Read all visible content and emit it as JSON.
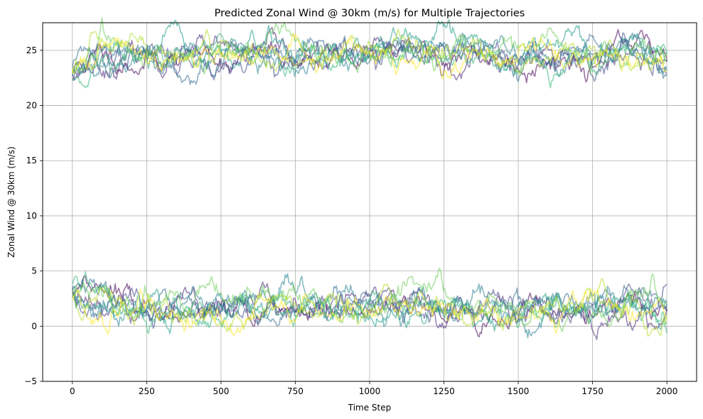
{
  "chart_data": {
    "type": "line",
    "title": "Predicted Zonal Wind @ 30km (m/s) for Multiple Trajectories",
    "xlabel": "Time Step",
    "ylabel": "Zonal Wind @ 30km (m/s)",
    "xlim": [
      -100,
      2100
    ],
    "ylim": [
      -5,
      27.5
    ],
    "xticks": [
      0,
      250,
      500,
      750,
      1000,
      1250,
      1500,
      1750,
      2000
    ],
    "yticks": [
      -5,
      0,
      5,
      10,
      15,
      20,
      25
    ],
    "grid": true,
    "legend": "none",
    "colormap": "viridis",
    "line_opacity": 0.55,
    "x_range": [
      0,
      2000
    ],
    "sample_every": 4,
    "colors": [
      "#440154",
      "#482878",
      "#3e4989",
      "#31688e",
      "#26828e",
      "#1f9e89",
      "#35b779",
      "#6ece58",
      "#b5de2b",
      "#fde725"
    ],
    "series": [
      {
        "regime": "upper",
        "color_index": 0,
        "seed": 11,
        "start": 23.0,
        "mean": 24.5,
        "std": 0.85
      },
      {
        "regime": "upper",
        "color_index": 1,
        "seed": 23,
        "start": 22.8,
        "mean": 24.3,
        "std": 0.85
      },
      {
        "regime": "upper",
        "color_index": 2,
        "seed": 37,
        "start": 22.5,
        "mean": 24.4,
        "std": 0.9
      },
      {
        "regime": "upper",
        "color_index": 3,
        "seed": 41,
        "start": 23.4,
        "mean": 24.7,
        "std": 0.85
      },
      {
        "regime": "upper",
        "color_index": 4,
        "seed": 53,
        "start": 22.7,
        "mean": 24.5,
        "std": 0.85
      },
      {
        "regime": "upper",
        "color_index": 5,
        "seed": 67,
        "start": 23.2,
        "mean": 24.6,
        "std": 0.9
      },
      {
        "regime": "upper",
        "color_index": 6,
        "seed": 71,
        "start": 22.3,
        "mean": 24.4,
        "std": 0.85
      },
      {
        "regime": "upper",
        "color_index": 7,
        "seed": 83,
        "start": 23.0,
        "mean": 24.8,
        "std": 0.9
      },
      {
        "regime": "upper",
        "color_index": 8,
        "seed": 97,
        "start": 22.9,
        "mean": 24.5,
        "std": 0.85
      },
      {
        "regime": "upper",
        "color_index": 9,
        "seed": 101,
        "start": 23.3,
        "mean": 24.6,
        "std": 0.85
      },
      {
        "regime": "lower",
        "color_index": 0,
        "seed": 113,
        "start": 3.5,
        "mean": 1.6,
        "std": 0.85
      },
      {
        "regime": "lower",
        "color_index": 1,
        "seed": 127,
        "start": 3.0,
        "mean": 1.5,
        "std": 0.85
      },
      {
        "regime": "lower",
        "color_index": 2,
        "seed": 131,
        "start": 2.8,
        "mean": 1.4,
        "std": 0.9
      },
      {
        "regime": "lower",
        "color_index": 3,
        "seed": 149,
        "start": 3.6,
        "mean": 1.7,
        "std": 0.85
      },
      {
        "regime": "lower",
        "color_index": 4,
        "seed": 151,
        "start": 3.2,
        "mean": 1.6,
        "std": 0.85
      },
      {
        "regime": "lower",
        "color_index": 5,
        "seed": 163,
        "start": 2.6,
        "mean": 1.5,
        "std": 0.9
      },
      {
        "regime": "lower",
        "color_index": 6,
        "seed": 173,
        "start": 3.8,
        "mean": 1.8,
        "std": 0.85
      },
      {
        "regime": "lower",
        "color_index": 7,
        "seed": 181,
        "start": 3.4,
        "mean": 1.6,
        "std": 0.9
      },
      {
        "regime": "lower",
        "color_index": 8,
        "seed": 191,
        "start": 2.9,
        "mean": 1.5,
        "std": 0.85
      },
      {
        "regime": "lower",
        "color_index": 9,
        "seed": 197,
        "start": 2.4,
        "mean": 1.4,
        "std": 0.85
      }
    ]
  }
}
